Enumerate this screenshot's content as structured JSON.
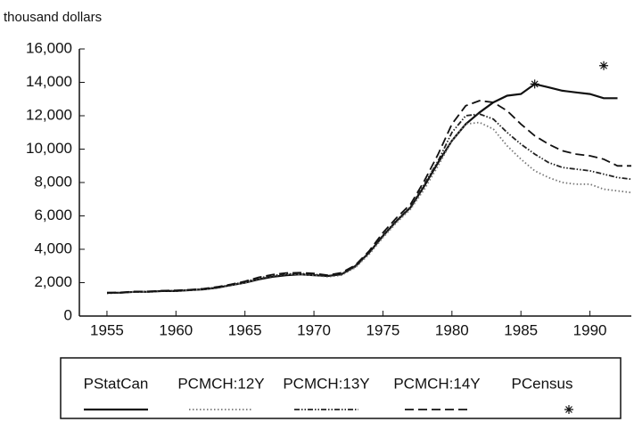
{
  "chart_data": {
    "type": "line",
    "y_label": "thousand dollars",
    "x": [
      1955,
      1956,
      1957,
      1958,
      1959,
      1960,
      1961,
      1962,
      1963,
      1964,
      1965,
      1966,
      1967,
      1968,
      1969,
      1970,
      1971,
      1972,
      1973,
      1974,
      1975,
      1976,
      1977,
      1978,
      1979,
      1980,
      1981,
      1982,
      1983,
      1984,
      1985,
      1986,
      1987,
      1988,
      1989,
      1990,
      1991,
      1992,
      1993
    ],
    "series": [
      {
        "name": "PStatCan",
        "color": "#111111",
        "style": "solid",
        "values": [
          1400,
          1400,
          1450,
          1450,
          1500,
          1500,
          1550,
          1600,
          1700,
          1850,
          2000,
          2200,
          2350,
          2450,
          2500,
          2450,
          2400,
          2500,
          3000,
          3800,
          4800,
          5700,
          6500,
          7800,
          9200,
          10500,
          11500,
          12200,
          12800,
          13200,
          13300,
          13900,
          13700,
          13500,
          13400,
          13300,
          13050,
          13050,
          null
        ]
      },
      {
        "name": "PCMCH:12Y",
        "color": "#777777",
        "style": "dotted",
        "values": [
          1350,
          1400,
          1450,
          1450,
          1500,
          1500,
          1550,
          1600,
          1700,
          1850,
          2000,
          2250,
          2400,
          2500,
          2500,
          2450,
          2350,
          2450,
          2900,
          3700,
          4700,
          5600,
          6400,
          7600,
          9000,
          10500,
          11500,
          11600,
          11200,
          10200,
          9400,
          8700,
          8300,
          8000,
          7900,
          7900,
          7600,
          7500,
          7400
        ]
      },
      {
        "name": "PCMCH:13Y",
        "color": "#222222",
        "style": "dashdot",
        "values": [
          1380,
          1400,
          1450,
          1470,
          1500,
          1520,
          1560,
          1620,
          1720,
          1870,
          2050,
          2280,
          2420,
          2520,
          2550,
          2500,
          2400,
          2500,
          2950,
          3800,
          4850,
          5750,
          6550,
          7900,
          9300,
          11000,
          12000,
          12100,
          11800,
          11000,
          10300,
          9700,
          9200,
          8900,
          8800,
          8700,
          8500,
          8300,
          8200
        ]
      },
      {
        "name": "PCMCH:14Y",
        "color": "#111111",
        "style": "dashed",
        "values": [
          1400,
          1420,
          1470,
          1480,
          1520,
          1540,
          1580,
          1640,
          1750,
          1900,
          2080,
          2320,
          2480,
          2580,
          2600,
          2550,
          2450,
          2600,
          3050,
          3900,
          5000,
          5900,
          6700,
          8100,
          9700,
          11500,
          12600,
          12900,
          12800,
          12300,
          11500,
          10800,
          10300,
          9900,
          9700,
          9600,
          9400,
          9000,
          9000
        ]
      },
      {
        "name": "PCensus",
        "color": "#111111",
        "style": "marker",
        "values": [
          null,
          null,
          null,
          null,
          null,
          null,
          null,
          null,
          null,
          null,
          null,
          null,
          null,
          null,
          null,
          null,
          null,
          null,
          null,
          null,
          null,
          null,
          null,
          null,
          null,
          null,
          null,
          null,
          null,
          null,
          null,
          13900,
          null,
          null,
          null,
          null,
          15000,
          null,
          null
        ]
      }
    ],
    "xlim": [
      1953,
      1993
    ],
    "xticks": [
      1955,
      1960,
      1965,
      1970,
      1975,
      1980,
      1985,
      1990
    ],
    "ylim": [
      0,
      16000
    ],
    "yticks": [
      0,
      {
        "value": 2000,
        "label": "2,000"
      },
      {
        "value": 4000,
        "label": "4,000"
      },
      {
        "value": 6000,
        "label": "6,000"
      },
      {
        "value": 8000,
        "label": "8,000"
      },
      {
        "value": 10000,
        "label": "10,000"
      },
      {
        "value": 12000,
        "label": "12,000"
      },
      {
        "value": 14000,
        "label": "14,000"
      },
      {
        "value": 16000,
        "label": "16,000"
      }
    ],
    "grid": false,
    "legend": "bottom"
  }
}
